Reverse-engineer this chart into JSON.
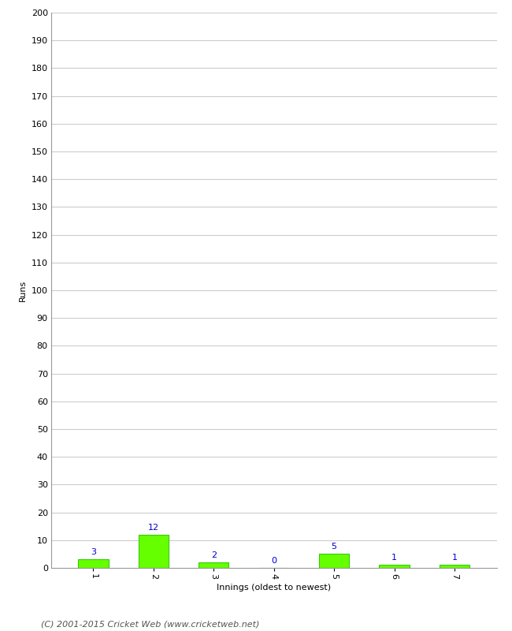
{
  "categories": [
    "1",
    "2",
    "3",
    "4",
    "5",
    "6",
    "7"
  ],
  "values": [
    3,
    12,
    2,
    0,
    5,
    1,
    1
  ],
  "bar_color": "#66ff00",
  "bar_edge_color": "#33cc00",
  "label_color": "#0000cc",
  "ylabel": "Runs",
  "xlabel": "Innings (oldest to newest)",
  "ylim": [
    0,
    200
  ],
  "yticks": [
    0,
    10,
    20,
    30,
    40,
    50,
    60,
    70,
    80,
    90,
    100,
    110,
    120,
    130,
    140,
    150,
    160,
    170,
    180,
    190,
    200
  ],
  "grid_color": "#cccccc",
  "background_color": "#ffffff",
  "footer": "(C) 2001-2015 Cricket Web (www.cricketweb.net)",
  "footer_color": "#555555",
  "label_fontsize": 8,
  "axis_label_fontsize": 8,
  "tick_fontsize": 8,
  "footer_fontsize": 8,
  "bar_width": 0.5
}
